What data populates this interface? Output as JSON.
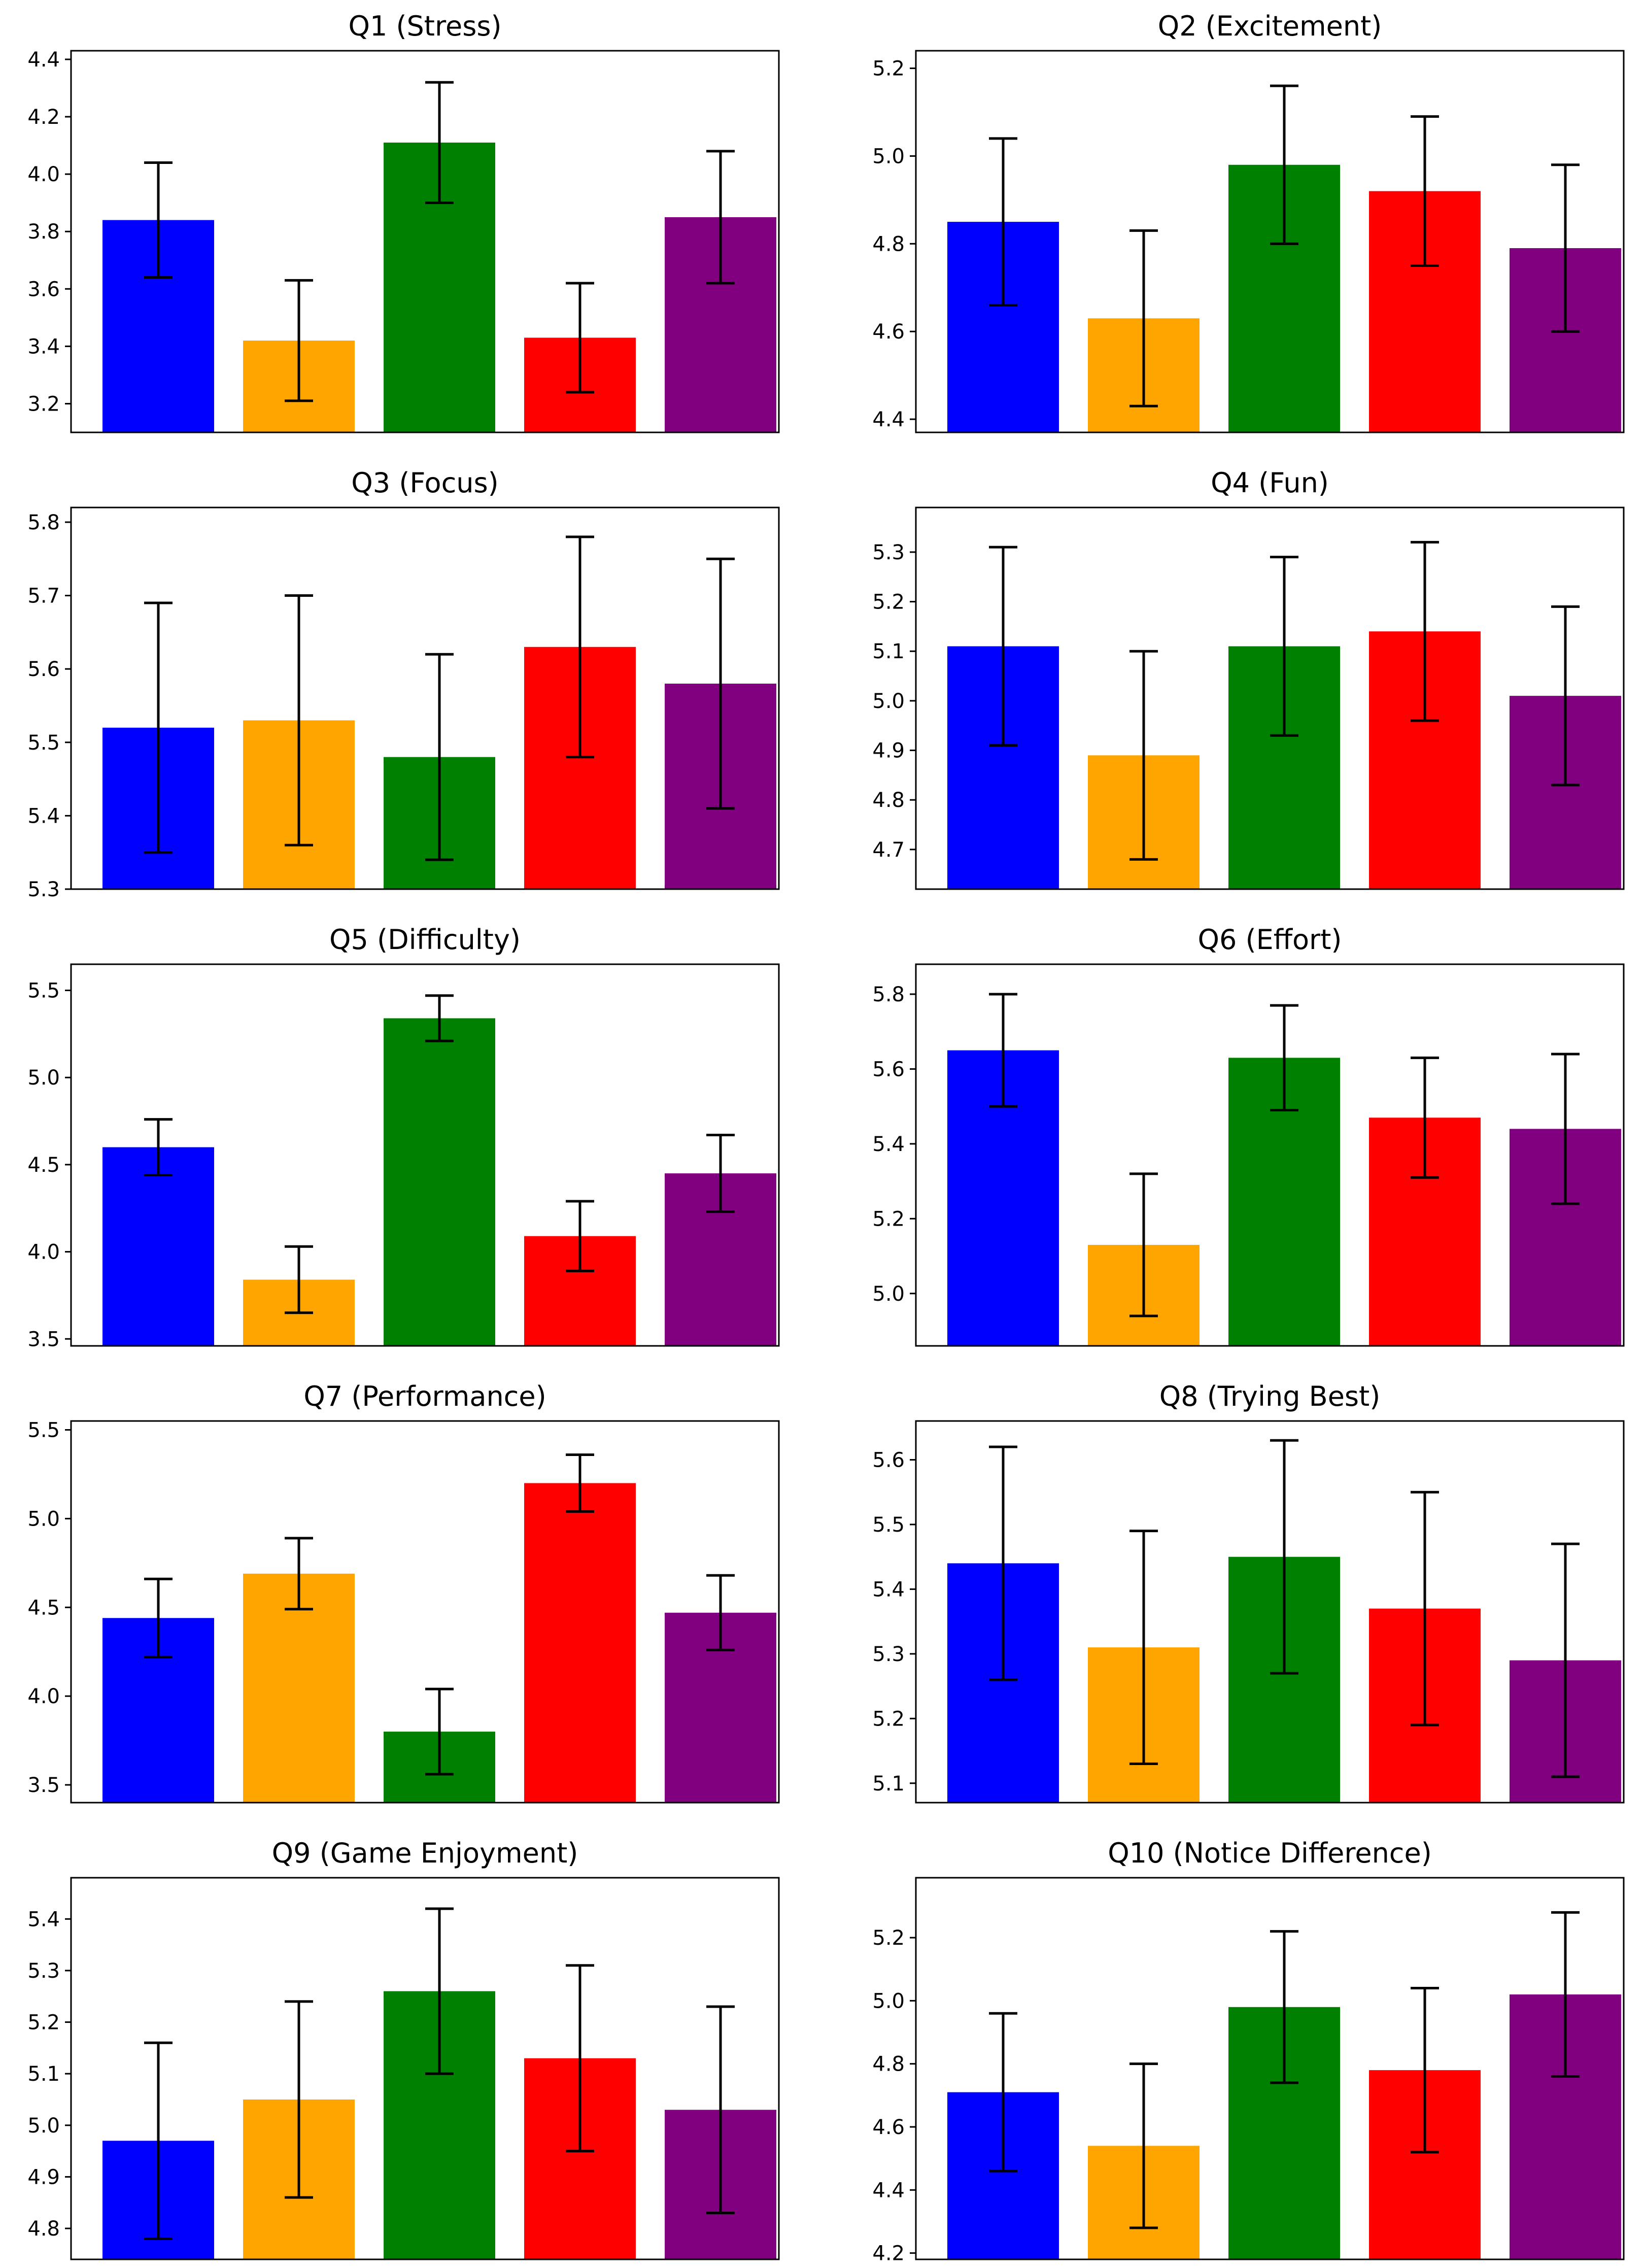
{
  "bar_colors": [
    "#0000ff",
    "#ffa500",
    "#008000",
    "#ff0000",
    "#800080"
  ],
  "chart_data": [
    {
      "type": "bar",
      "title": "Q1 (Stress)",
      "values": [
        3.84,
        3.42,
        4.11,
        3.43,
        3.85
      ],
      "errors": [
        0.2,
        0.21,
        0.21,
        0.19,
        0.23
      ],
      "ylim": [
        3.1,
        4.43
      ],
      "yticks": [
        3.2,
        3.4,
        3.6,
        3.8,
        4.0,
        4.2,
        4.4
      ],
      "ytick_labels": [
        "3.2",
        "3.4",
        "3.6",
        "3.8",
        "4.0",
        "4.2",
        "4.4"
      ]
    },
    {
      "type": "bar",
      "title": "Q2 (Excitement)",
      "values": [
        4.85,
        4.63,
        4.98,
        4.92,
        4.79
      ],
      "errors": [
        0.19,
        0.2,
        0.18,
        0.17,
        0.19
      ],
      "ylim": [
        4.37,
        5.24
      ],
      "yticks": [
        4.4,
        4.6,
        4.8,
        5.0,
        5.2
      ],
      "ytick_labels": [
        "4.4",
        "4.6",
        "4.8",
        "5.0",
        "5.2"
      ]
    },
    {
      "type": "bar",
      "title": "Q3 (Focus)",
      "values": [
        5.52,
        5.53,
        5.48,
        5.63,
        5.58
      ],
      "errors": [
        0.17,
        0.17,
        0.14,
        0.15,
        0.17
      ],
      "ylim": [
        5.3,
        5.82
      ],
      "yticks": [
        5.3,
        5.4,
        5.5,
        5.6,
        5.7,
        5.8
      ],
      "ytick_labels": [
        "5.3",
        "5.4",
        "5.5",
        "5.6",
        "5.7",
        "5.8"
      ]
    },
    {
      "type": "bar",
      "title": "Q4 (Fun)",
      "values": [
        5.11,
        4.89,
        5.11,
        5.14,
        5.01
      ],
      "errors": [
        0.2,
        0.21,
        0.18,
        0.18,
        0.18
      ],
      "ylim": [
        4.62,
        5.39
      ],
      "yticks": [
        4.7,
        4.8,
        4.9,
        5.0,
        5.1,
        5.2,
        5.3
      ],
      "ytick_labels": [
        "4.7",
        "4.8",
        "4.9",
        "5.0",
        "5.1",
        "5.2",
        "5.3"
      ]
    },
    {
      "type": "bar",
      "title": "Q5 (Difficulty)",
      "values": [
        4.6,
        3.84,
        5.34,
        4.09,
        4.45
      ],
      "errors": [
        0.16,
        0.19,
        0.13,
        0.2,
        0.22
      ],
      "ylim": [
        3.46,
        5.65
      ],
      "yticks": [
        3.5,
        4.0,
        4.5,
        5.0,
        5.5
      ],
      "ytick_labels": [
        "3.5",
        "4.0",
        "4.5",
        "5.0",
        "5.5"
      ]
    },
    {
      "type": "bar",
      "title": "Q6 (Effort)",
      "values": [
        5.65,
        5.13,
        5.63,
        5.47,
        5.44
      ],
      "errors": [
        0.15,
        0.19,
        0.14,
        0.16,
        0.2
      ],
      "ylim": [
        4.86,
        5.88
      ],
      "yticks": [
        5.0,
        5.2,
        5.4,
        5.6,
        5.8
      ],
      "ytick_labels": [
        "5.0",
        "5.2",
        "5.4",
        "5.6",
        "5.8"
      ]
    },
    {
      "type": "bar",
      "title": "Q7 (Performance)",
      "values": [
        4.44,
        4.69,
        3.8,
        5.2,
        4.47
      ],
      "errors": [
        0.22,
        0.2,
        0.24,
        0.16,
        0.21
      ],
      "ylim": [
        3.4,
        5.55
      ],
      "yticks": [
        3.5,
        4.0,
        4.5,
        5.0,
        5.5
      ],
      "ytick_labels": [
        "3.5",
        "4.0",
        "4.5",
        "5.0",
        "5.5"
      ]
    },
    {
      "type": "bar",
      "title": "Q8 (Trying Best)",
      "values": [
        5.44,
        5.31,
        5.45,
        5.37,
        5.29
      ],
      "errors": [
        0.18,
        0.18,
        0.18,
        0.18,
        0.18
      ],
      "ylim": [
        5.07,
        5.66
      ],
      "yticks": [
        5.1,
        5.2,
        5.3,
        5.4,
        5.5,
        5.6
      ],
      "ytick_labels": [
        "5.1",
        "5.2",
        "5.3",
        "5.4",
        "5.5",
        "5.6"
      ]
    },
    {
      "type": "bar",
      "title": "Q9 (Game Enjoyment)",
      "values": [
        4.97,
        5.05,
        5.26,
        5.13,
        5.03
      ],
      "errors": [
        0.19,
        0.19,
        0.16,
        0.18,
        0.2
      ],
      "ylim": [
        4.74,
        5.48
      ],
      "yticks": [
        4.8,
        4.9,
        5.0,
        5.1,
        5.2,
        5.3,
        5.4
      ],
      "ytick_labels": [
        "4.8",
        "4.9",
        "5.0",
        "5.1",
        "5.2",
        "5.3",
        "5.4"
      ]
    },
    {
      "type": "bar",
      "title": "Q10 (Notice Difference)",
      "values": [
        4.71,
        4.54,
        4.98,
        4.78,
        5.02
      ],
      "errors": [
        0.25,
        0.26,
        0.24,
        0.26,
        0.26
      ],
      "ylim": [
        4.18,
        5.39
      ],
      "yticks": [
        4.2,
        4.4,
        4.6,
        4.8,
        5.0,
        5.2
      ],
      "ytick_labels": [
        "4.2",
        "4.4",
        "4.6",
        "4.8",
        "5.0",
        "5.2"
      ]
    }
  ]
}
